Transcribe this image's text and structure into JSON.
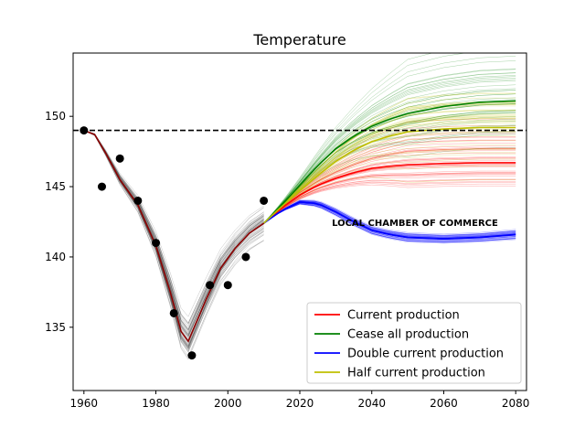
{
  "chart_data": {
    "type": "line",
    "title": "Temperature",
    "xlabel": "",
    "ylabel": "",
    "xlim": [
      1957,
      2083
    ],
    "ylim": [
      130.5,
      154.5
    ],
    "xticks": [
      1960,
      1980,
      2000,
      2020,
      2040,
      2060,
      2080
    ],
    "yticks": [
      135,
      140,
      145,
      150
    ],
    "grid": false,
    "legend_position": "lower-right",
    "reference_line": {
      "y": 149,
      "style": "dashed",
      "color": "#000000"
    },
    "annotation": {
      "text": "LOCAL CHAMBER OF COMMERCE",
      "x": 2052,
      "y": 142.2
    },
    "observed": {
      "x": [
        1960,
        1965,
        1970,
        1975,
        1980,
        1985,
        1990,
        1995,
        2000,
        2005,
        2010
      ],
      "y": [
        149,
        145,
        147,
        144,
        141,
        136,
        133,
        138,
        138,
        140,
        144
      ],
      "color": "#000000"
    },
    "historical_fit": {
      "x": [
        1960,
        1963,
        1966,
        1970,
        1975,
        1980,
        1984,
        1987,
        1989,
        1991,
        1994,
        1998,
        2002,
        2006,
        2010
      ],
      "y": [
        149,
        148.7,
        147.4,
        145.5,
        143.7,
        140.8,
        137.5,
        134.7,
        134.0,
        135.2,
        137.0,
        139.2,
        140.6,
        141.7,
        142.4
      ],
      "color": "#8b0000"
    },
    "series": [
      {
        "name": "Current production",
        "color": "#ff0000",
        "x": [
          2010,
          2015,
          2020,
          2025,
          2030,
          2035,
          2040,
          2045,
          2050,
          2060,
          2070,
          2080
        ],
        "y": [
          142.4,
          143.5,
          144.4,
          145.1,
          145.6,
          146.0,
          146.3,
          146.45,
          146.55,
          146.65,
          146.7,
          146.7
        ]
      },
      {
        "name": "Cease all production",
        "color": "#008000",
        "x": [
          2010,
          2015,
          2020,
          2025,
          2030,
          2035,
          2040,
          2045,
          2050,
          2060,
          2070,
          2080
        ],
        "y": [
          142.4,
          143.7,
          145.1,
          146.5,
          147.7,
          148.6,
          149.3,
          149.8,
          150.2,
          150.7,
          151.0,
          151.1
        ]
      },
      {
        "name": "Double current production",
        "color": "#0000ff",
        "x": [
          2010,
          2015,
          2020,
          2025,
          2030,
          2035,
          2040,
          2045,
          2050,
          2060,
          2070,
          2080
        ],
        "y": [
          142.4,
          143.3,
          143.9,
          143.8,
          143.2,
          142.5,
          141.9,
          141.6,
          141.4,
          141.3,
          141.4,
          141.6
        ]
      },
      {
        "name": "Half current production",
        "color": "#bfbf00",
        "x": [
          2010,
          2015,
          2020,
          2025,
          2030,
          2035,
          2040,
          2045,
          2050,
          2060,
          2070,
          2080
        ],
        "y": [
          142.4,
          143.6,
          144.7,
          145.8,
          146.8,
          147.6,
          148.2,
          148.6,
          148.9,
          149.1,
          149.2,
          149.2
        ]
      }
    ]
  }
}
